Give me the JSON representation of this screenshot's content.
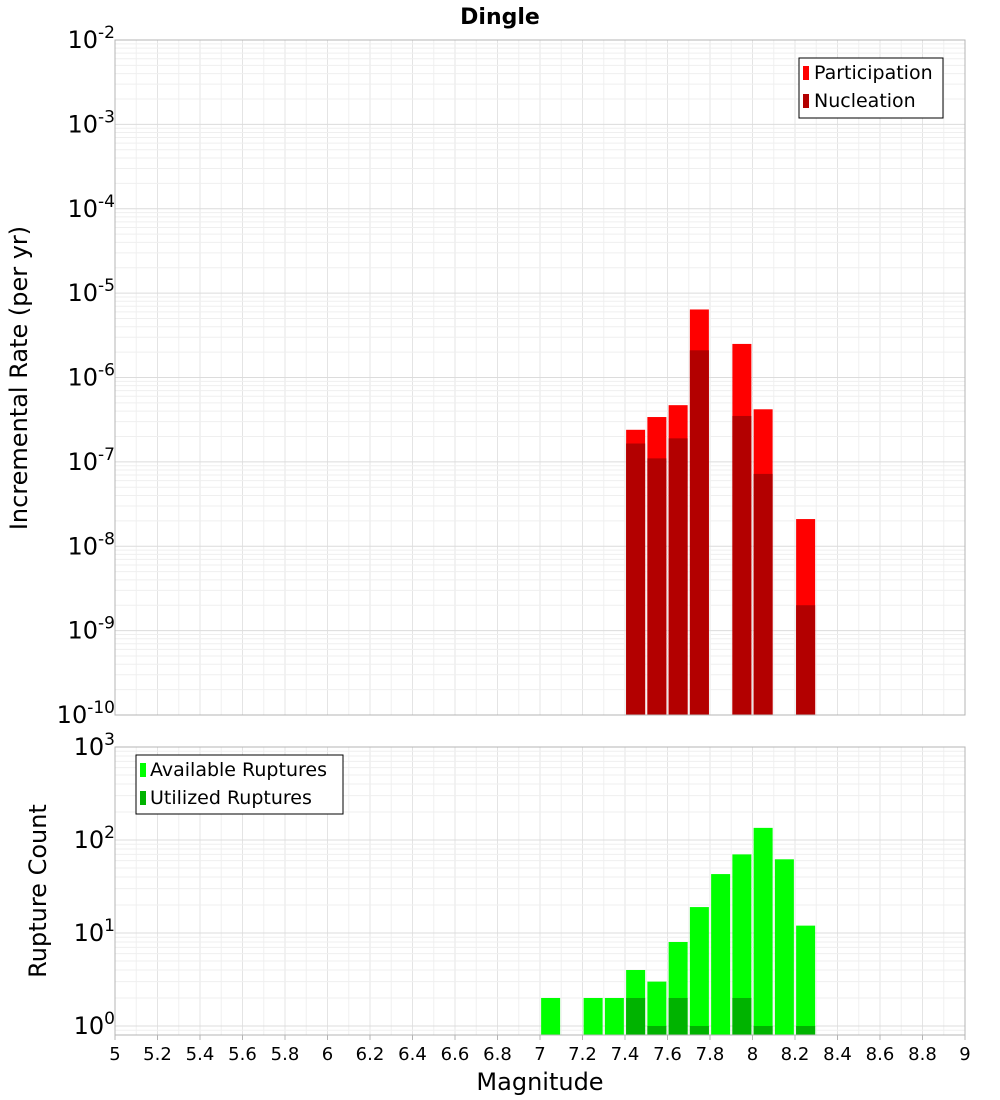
{
  "chart_data": [
    {
      "type": "bar",
      "title": "Dingle",
      "ylabel": "Incremental Rate (per yr)",
      "xlabel": "",
      "y_scale": "log",
      "ylim": [
        1e-10,
        0.01
      ],
      "xlim": [
        5,
        9
      ],
      "grid": true,
      "legend_position": "top-right",
      "y_ticks": [
        {
          "base": "10",
          "exp": "-10"
        },
        {
          "base": "10",
          "exp": "-9"
        },
        {
          "base": "10",
          "exp": "-8"
        },
        {
          "base": "10",
          "exp": "-7"
        },
        {
          "base": "10",
          "exp": "-6"
        },
        {
          "base": "10",
          "exp": "-5"
        },
        {
          "base": "10",
          "exp": "-4"
        },
        {
          "base": "10",
          "exp": "-3"
        },
        {
          "base": "10",
          "exp": "-2"
        }
      ],
      "series": [
        {
          "name": "Participation",
          "color": "#ff0000",
          "x": [
            7.45,
            7.55,
            7.65,
            7.75,
            7.95,
            8.05,
            8.25
          ],
          "values": [
            2.4e-07,
            3.4e-07,
            4.7e-07,
            6.4e-06,
            2.5e-06,
            4.2e-07,
            2.1e-08
          ]
        },
        {
          "name": "Nucleation",
          "color": "#b30000",
          "x": [
            7.45,
            7.55,
            7.65,
            7.75,
            7.95,
            8.05,
            8.25
          ],
          "values": [
            1.65e-07,
            1.1e-07,
            1.9e-07,
            2.1e-06,
            3.5e-07,
            7.2e-08,
            2e-09
          ]
        }
      ]
    },
    {
      "type": "bar",
      "title": "",
      "ylabel": "Rupture Count",
      "xlabel": "Magnitude",
      "y_scale": "log",
      "ylim": [
        0.8,
        1000
      ],
      "xlim": [
        5,
        9
      ],
      "grid": true,
      "legend_position": "top-left",
      "y_ticks": [
        {
          "base": "10",
          "exp": "0",
          "value": 1
        },
        {
          "base": "10",
          "exp": "1",
          "value": 10
        },
        {
          "base": "10",
          "exp": "2",
          "value": 100
        },
        {
          "base": "10",
          "exp": "3",
          "value": 1000
        }
      ],
      "x_ticks": [
        "5",
        "5.2",
        "5.4",
        "5.6",
        "5.8",
        "6",
        "6.2",
        "6.4",
        "6.6",
        "6.8",
        "7",
        "7.2",
        "7.4",
        "7.6",
        "7.8",
        "8",
        "8.2",
        "8.4",
        "8.6",
        "8.8",
        "9"
      ],
      "series": [
        {
          "name": "Available Ruptures",
          "color": "#00ff00",
          "x": [
            7.05,
            7.25,
            7.35,
            7.45,
            7.55,
            7.65,
            7.75,
            7.85,
            7.95,
            8.05,
            8.15,
            8.25
          ],
          "values": [
            2,
            2,
            2,
            4,
            3,
            8,
            19,
            43,
            70,
            135,
            62,
            12
          ]
        },
        {
          "name": "Utilized Ruptures",
          "color": "#00b300",
          "x": [
            7.45,
            7.55,
            7.65,
            7.75,
            7.95,
            8.05,
            8.25
          ],
          "values": [
            2,
            1,
            2,
            1,
            2,
            1,
            1
          ]
        }
      ]
    }
  ]
}
